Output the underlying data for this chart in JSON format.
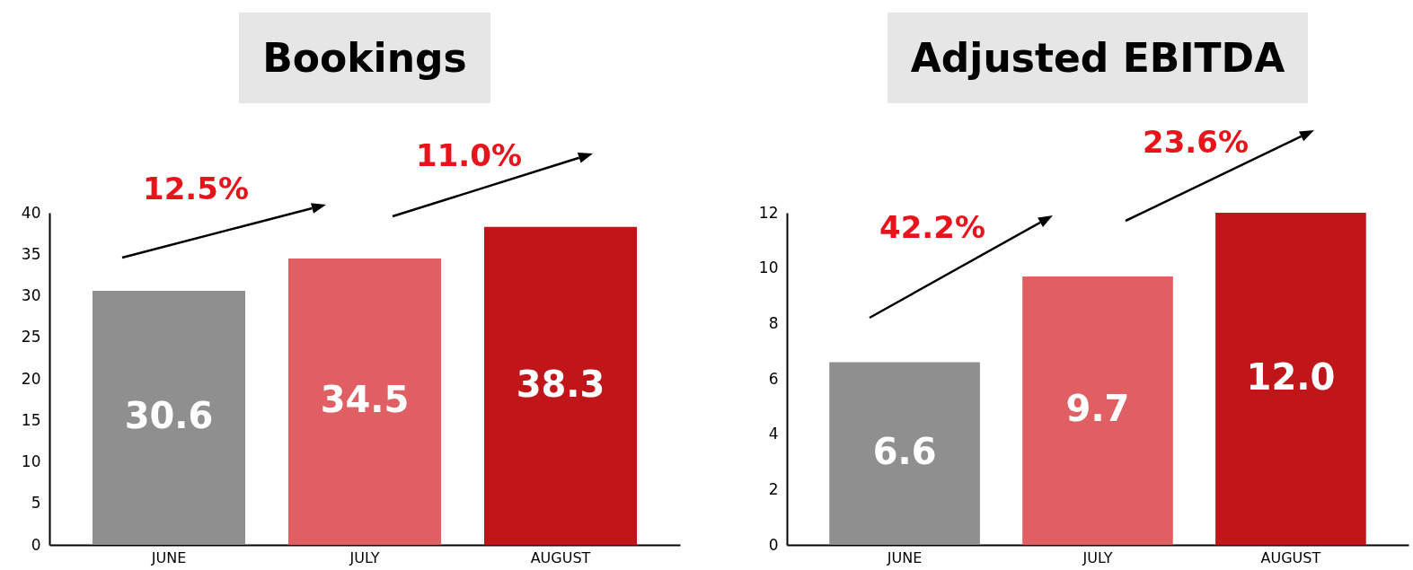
{
  "chart_data": [
    {
      "type": "bar",
      "title": "Bookings",
      "categories": [
        "JUNE",
        "JULY",
        "AUGUST"
      ],
      "values": [
        30.6,
        34.5,
        38.3
      ],
      "value_labels": [
        "30.6",
        "34.5",
        "38.3"
      ],
      "colors": [
        "#8f8f8f",
        "#e05f62",
        "#c0161a"
      ],
      "ylim": [
        0,
        40
      ],
      "yticks": [
        0,
        5,
        10,
        15,
        20,
        25,
        30,
        35,
        40
      ],
      "annotations": [
        "12.5%",
        "11.0%"
      ]
    },
    {
      "type": "bar",
      "title": "Adjusted EBITDA",
      "categories": [
        "JUNE",
        "JULY",
        "AUGUST"
      ],
      "values": [
        6.6,
        9.7,
        12.0
      ],
      "value_labels": [
        "6.6",
        "9.7",
        "12.0"
      ],
      "colors": [
        "#8f8f8f",
        "#e05f62",
        "#c0161a"
      ],
      "ylim": [
        0,
        12
      ],
      "yticks": [
        0,
        2,
        4,
        6,
        8,
        10,
        12
      ],
      "annotations": [
        "42.2%",
        "23.6%"
      ]
    }
  ]
}
